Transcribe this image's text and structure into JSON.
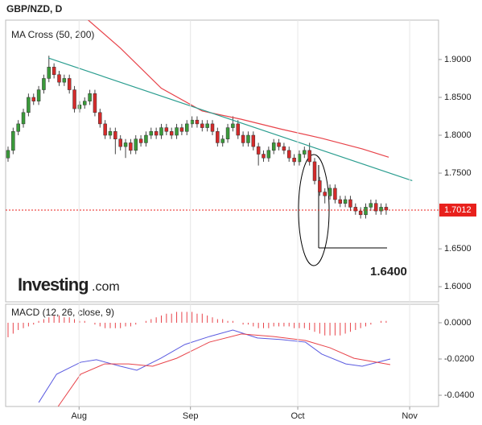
{
  "chart_data": [
    {
      "type": "candlestick",
      "title": "GBP/NZD, D",
      "label": "MA Cross (50, 200)",
      "watermark": "Investing",
      "watermark_suffix": ".com",
      "up_color": "#3a9a3a",
      "down_color": "#d42a2a",
      "open": [
        1.77,
        1.78,
        1.805,
        1.815,
        1.83,
        1.85,
        1.845,
        1.86,
        1.875,
        1.89,
        1.88,
        1.87,
        1.875,
        1.86,
        1.835,
        1.84,
        1.845,
        1.855,
        1.83,
        1.815,
        1.8,
        1.805,
        1.795,
        1.785,
        1.79,
        1.78,
        1.795,
        1.79,
        1.8,
        1.805,
        1.8,
        1.81,
        1.805,
        1.8,
        1.81,
        1.805,
        1.815,
        1.82,
        1.815,
        1.81,
        1.815,
        1.805,
        1.79,
        1.795,
        1.81,
        1.815,
        1.8,
        1.79,
        1.8,
        1.785,
        1.775,
        1.77,
        1.78,
        1.79,
        1.785,
        1.78,
        1.77,
        1.765,
        1.775,
        1.78,
        1.765,
        1.74,
        1.725,
        1.72,
        1.73,
        1.715,
        1.71,
        1.715,
        1.705,
        1.7,
        1.695,
        1.705,
        1.71,
        1.7,
        1.705
      ],
      "high": [
        1.785,
        1.81,
        1.82,
        1.835,
        1.855,
        1.855,
        1.865,
        1.88,
        1.905,
        1.895,
        1.885,
        1.88,
        1.88,
        1.865,
        1.845,
        1.85,
        1.86,
        1.86,
        1.835,
        1.82,
        1.81,
        1.81,
        1.8,
        1.795,
        1.795,
        1.8,
        1.8,
        1.805,
        1.81,
        1.81,
        1.815,
        1.815,
        1.81,
        1.815,
        1.815,
        1.82,
        1.825,
        1.825,
        1.82,
        1.82,
        1.82,
        1.81,
        1.8,
        1.815,
        1.825,
        1.82,
        1.805,
        1.805,
        1.805,
        1.79,
        1.78,
        1.785,
        1.795,
        1.795,
        1.79,
        1.785,
        1.775,
        1.78,
        1.785,
        1.79,
        1.77,
        1.745,
        1.73,
        1.735,
        1.735,
        1.72,
        1.72,
        1.72,
        1.71,
        1.705,
        1.71,
        1.715,
        1.715,
        1.71,
        1.71
      ],
      "low": [
        1.765,
        1.775,
        1.8,
        1.81,
        1.825,
        1.84,
        1.84,
        1.855,
        1.87,
        1.875,
        1.865,
        1.865,
        1.855,
        1.83,
        1.83,
        1.835,
        1.84,
        1.825,
        1.81,
        1.795,
        1.795,
        1.775,
        1.78,
        1.77,
        1.775,
        1.775,
        1.785,
        1.785,
        1.795,
        1.795,
        1.795,
        1.8,
        1.795,
        1.795,
        1.8,
        1.8,
        1.81,
        1.81,
        1.805,
        1.805,
        1.8,
        1.785,
        1.785,
        1.79,
        1.805,
        1.795,
        1.785,
        1.785,
        1.78,
        1.76,
        1.765,
        1.765,
        1.775,
        1.78,
        1.775,
        1.765,
        1.76,
        1.76,
        1.77,
        1.76,
        1.735,
        1.72,
        1.71,
        1.715,
        1.71,
        1.705,
        1.705,
        1.7,
        1.695,
        1.69,
        1.69,
        1.7,
        1.695,
        1.695,
        1.695
      ],
      "close": [
        1.78,
        1.805,
        1.815,
        1.83,
        1.85,
        1.845,
        1.86,
        1.875,
        1.89,
        1.88,
        1.87,
        1.875,
        1.86,
        1.835,
        1.84,
        1.845,
        1.855,
        1.83,
        1.815,
        1.8,
        1.805,
        1.795,
        1.785,
        1.79,
        1.78,
        1.795,
        1.79,
        1.8,
        1.805,
        1.8,
        1.81,
        1.805,
        1.8,
        1.81,
        1.805,
        1.815,
        1.82,
        1.815,
        1.81,
        1.815,
        1.805,
        1.79,
        1.795,
        1.81,
        1.815,
        1.8,
        1.79,
        1.8,
        1.785,
        1.775,
        1.77,
        1.78,
        1.79,
        1.785,
        1.78,
        1.77,
        1.765,
        1.775,
        1.78,
        1.765,
        1.74,
        1.725,
        1.72,
        1.73,
        1.715,
        1.71,
        1.715,
        1.705,
        1.7,
        1.695,
        1.705,
        1.71,
        1.7,
        1.705,
        1.7012
      ],
      "ma": {
        "color": "#e8434a",
        "x": [
          15.7,
          22,
          30,
          38,
          45.7,
          53.5,
          61.4,
          69.3,
          74.5
        ],
        "values": [
          1.952,
          1.915,
          1.862,
          1.832,
          1.821,
          1.808,
          1.796,
          1.782,
          1.771
        ]
      },
      "trendline": {
        "color": "#2a9d8f",
        "x": [
          7.9,
          79.1
        ],
        "values": [
          1.902,
          1.74
        ]
      },
      "last_price": 1.7012,
      "last_price_color": "#e8201c",
      "annotation": "1.6400",
      "xlim": [
        -0.47,
        84.25
      ],
      "ylim": [
        1.58,
        1.952
      ],
      "yticks": [
        {
          "value": 1.9,
          "label": "1.9000"
        },
        {
          "value": 1.85,
          "label": "1.8500"
        },
        {
          "value": 1.8,
          "label": "1.8000"
        },
        {
          "value": 1.75,
          "label": "1.7500"
        },
        {
          "value": 1.65,
          "label": "1.6500"
        },
        {
          "value": 1.6,
          "label": "1.6000"
        }
      ]
    },
    {
      "type": "macd",
      "label": "MACD (12, 26, close, 9)",
      "histogram": {
        "color": "#e8434a",
        "values": [
          -0.008,
          -0.006,
          -0.004,
          -0.003,
          -0.002,
          -0.001,
          0.001,
          0.002,
          0.003,
          0.004,
          0.004,
          0.003,
          0.003,
          0.002,
          0.001,
          0.001,
          0.0,
          -0.001,
          -0.002,
          -0.003,
          -0.003,
          -0.003,
          -0.003,
          -0.002,
          -0.002,
          -0.001,
          0.0,
          0.001,
          0.002,
          0.003,
          0.004,
          0.005,
          0.005,
          0.006,
          0.006,
          0.006,
          0.006,
          0.005,
          0.005,
          0.004,
          0.003,
          0.002,
          0.002,
          0.001,
          0.001,
          0.0,
          -0.001,
          -0.001,
          -0.002,
          -0.003,
          -0.003,
          -0.003,
          -0.002,
          -0.002,
          -0.002,
          -0.002,
          -0.003,
          -0.003,
          -0.003,
          -0.004,
          -0.005,
          -0.006,
          -0.007,
          -0.007,
          -0.007,
          -0.007,
          -0.006,
          -0.005,
          -0.004,
          -0.003,
          -0.002,
          -0.001,
          0.0,
          0.001,
          0.001
        ]
      },
      "series": [
        {
          "color": "#5a5ae0",
          "x": [
            6,
            9.5,
            14.2,
            17.3,
            22,
            25.2,
            29.9,
            34.6,
            39.4,
            44,
            48.8,
            53.5,
            58.2,
            61.4,
            66.1,
            69.3,
            74.8
          ],
          "values": [
            -0.044,
            -0.0284,
            -0.0218,
            -0.0204,
            -0.024,
            -0.0262,
            -0.0196,
            -0.012,
            -0.0076,
            -0.004,
            -0.0084,
            -0.0093,
            -0.0107,
            -0.0173,
            -0.0227,
            -0.024,
            -0.02
          ]
        },
        {
          "color": "#e8434a",
          "x": [
            9.8,
            14.2,
            18.9,
            23.6,
            28.3,
            33,
            39.4,
            45.7,
            52,
            58.2,
            63,
            67.7,
            74.8
          ],
          "values": [
            -0.0462,
            -0.0284,
            -0.0227,
            -0.0227,
            -0.024,
            -0.0196,
            -0.0107,
            -0.0062,
            -0.0076,
            -0.0098,
            -0.0138,
            -0.0196,
            -0.0231
          ]
        }
      ],
      "xlim": [
        -0.47,
        84.25
      ],
      "ylim": [
        -0.0462,
        0.0102
      ],
      "yticks": [
        {
          "value": 0,
          "label": "0.0000"
        },
        {
          "value": -0.02,
          "label": "-0.0200"
        },
        {
          "value": -0.04,
          "label": "-0.0400"
        }
      ],
      "xticks": [
        {
          "value": 13.9,
          "label": "Aug"
        },
        {
          "value": 35.7,
          "label": "Sep"
        },
        {
          "value": 56.7,
          "label": "Oct"
        },
        {
          "value": 78.6,
          "label": "Nov"
        }
      ]
    }
  ]
}
